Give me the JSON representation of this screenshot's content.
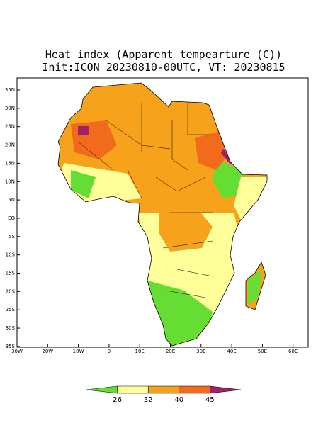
{
  "title": "Heat index (Apparent tempearture (C))",
  "subtitle": "Init:ICON 20230810-00UTC, VT: 20230815",
  "lat_labels": [
    "35N",
    "30N",
    "25N",
    "20N",
    "15N",
    "10N",
    "5N",
    "EQ",
    "5S",
    "10S",
    "15S",
    "20S",
    "25S",
    "30S",
    "35S"
  ],
  "lon_labels": [
    "30W",
    "20W",
    "10W",
    "0",
    "10E",
    "20E",
    "30E",
    "40E",
    "50E",
    "60E"
  ],
  "colorbar": {
    "ticks": [
      26,
      32,
      40,
      45
    ],
    "colors": [
      "#66dd33",
      "#ffff99",
      "#f7a21b",
      "#f26a1b",
      "#a0206a"
    ]
  }
}
